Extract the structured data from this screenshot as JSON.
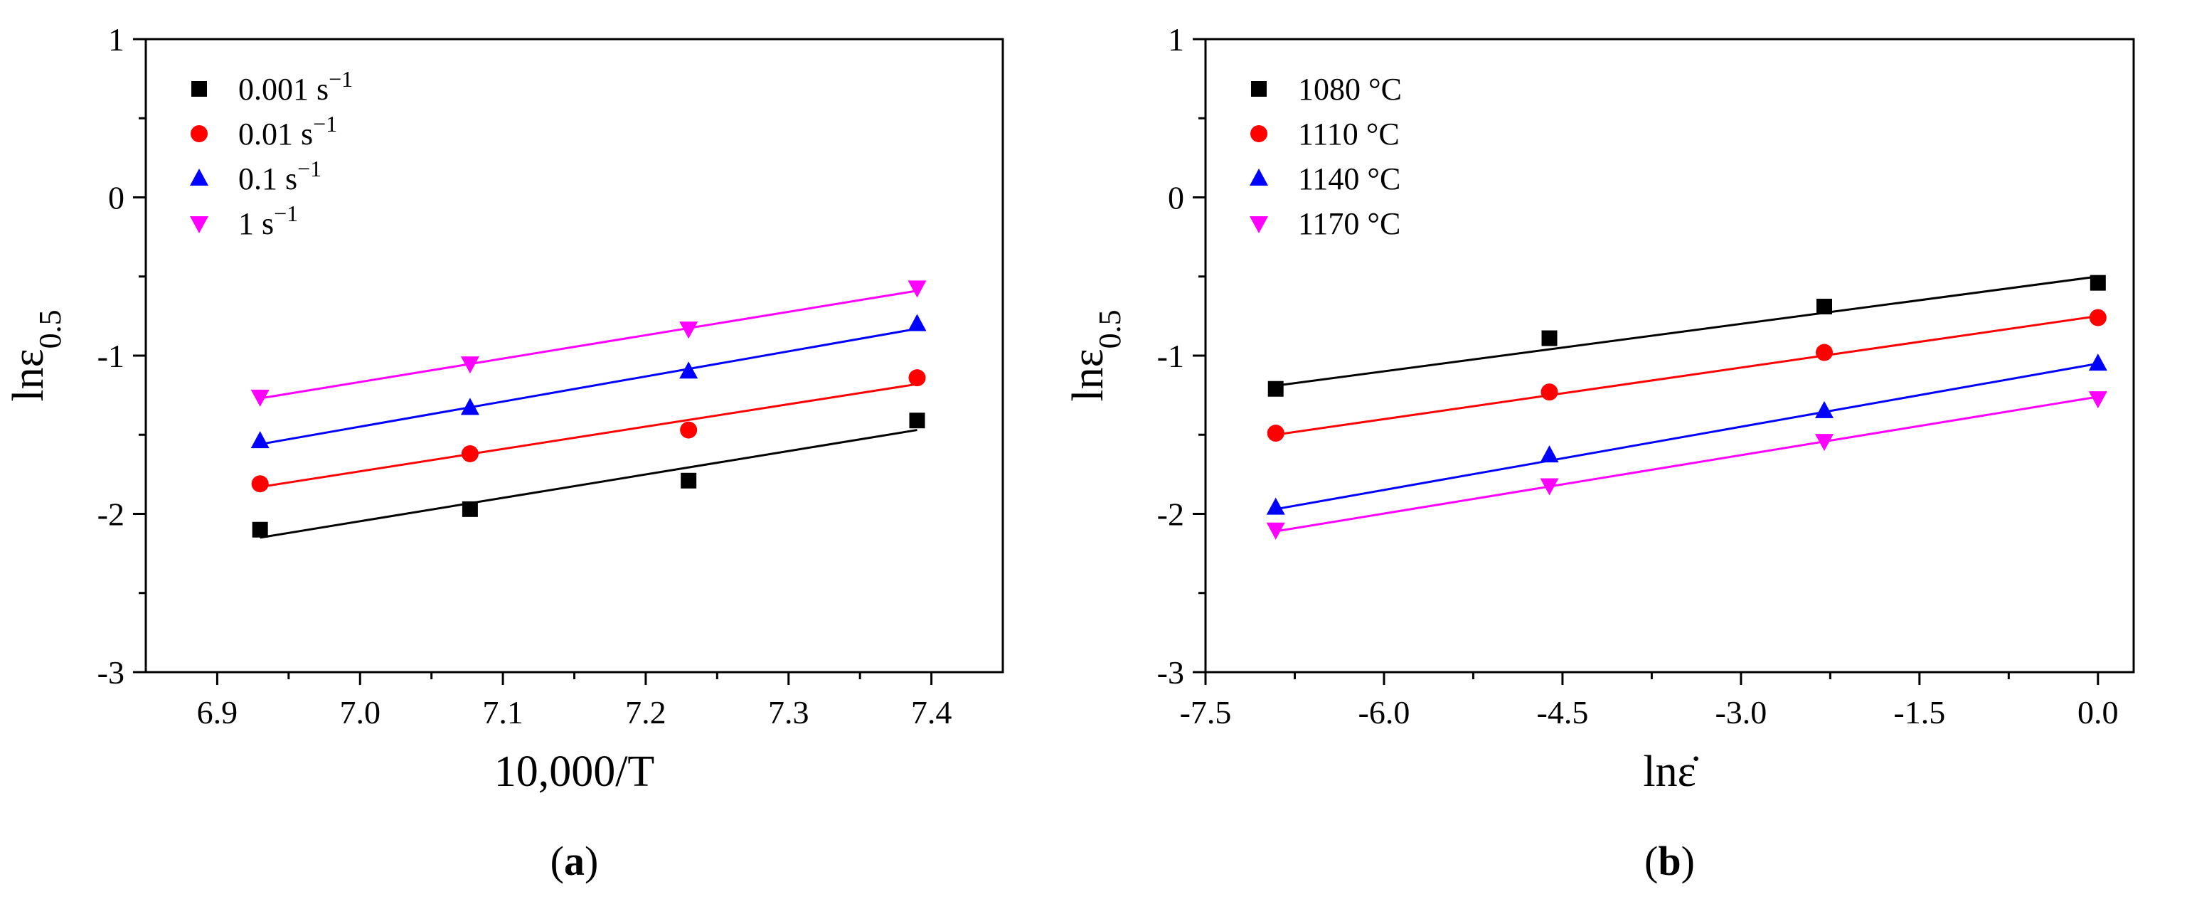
{
  "chart_data": [
    {
      "type": "scatter",
      "panel_label": "(a)",
      "panel_letter": "a",
      "xlabel": "10,000/T",
      "ylabel": "lnε0.5",
      "ylabel_main": "lnε",
      "ylabel_sub": "0.5",
      "xlim": [
        6.85,
        7.45
      ],
      "ylim": [
        -3,
        1
      ],
      "xticks": [
        6.9,
        7.0,
        7.1,
        7.2,
        7.3,
        7.4
      ],
      "xtick_labels": [
        "6.9",
        "7.0",
        "7.1",
        "7.2",
        "7.3",
        "7.4"
      ],
      "yticks": [
        -3,
        -2,
        -1,
        0,
        1
      ],
      "ytick_labels": [
        "-3",
        "-2",
        "-1",
        "0",
        "1"
      ],
      "grid": false,
      "legend_position": "top-left",
      "fit_lines": true,
      "series": [
        {
          "name": "0.001 s−1",
          "label_main": "0.001 s",
          "label_sup": "−1",
          "color": "#000000",
          "marker": "square",
          "x": [
            6.93,
            7.077,
            7.23,
            7.39
          ],
          "y": [
            -2.1,
            -1.97,
            -1.79,
            -1.41
          ],
          "fit": {
            "x": [
              6.93,
              7.39
            ],
            "y": [
              -2.15,
              -1.47
            ]
          }
        },
        {
          "name": "0.01 s−1",
          "label_main": "0.01 s",
          "label_sup": "−1",
          "color": "#ff0000",
          "marker": "circle",
          "x": [
            6.93,
            7.077,
            7.23,
            7.39
          ],
          "y": [
            -1.81,
            -1.62,
            -1.47,
            -1.14
          ],
          "fit": {
            "x": [
              6.93,
              7.39
            ],
            "y": [
              -1.83,
              -1.18
            ]
          }
        },
        {
          "name": "0.1 s−1",
          "label_main": "0.1 s",
          "label_sup": "−1",
          "color": "#0000ff",
          "marker": "triangle-up",
          "x": [
            6.93,
            7.077,
            7.23,
            7.39
          ],
          "y": [
            -1.54,
            -1.33,
            -1.1,
            -0.8
          ],
          "fit": {
            "x": [
              6.93,
              7.39
            ],
            "y": [
              -1.56,
              -0.83
            ]
          }
        },
        {
          "name": "1 s−1",
          "label_main": "1 s",
          "label_sup": "−1",
          "color": "#ff00ff",
          "marker": "triangle-down",
          "x": [
            6.93,
            7.077,
            7.23,
            7.39
          ],
          "y": [
            -1.26,
            -1.05,
            -0.83,
            -0.57
          ],
          "fit": {
            "x": [
              6.93,
              7.39
            ],
            "y": [
              -1.27,
              -0.59
            ]
          }
        }
      ]
    },
    {
      "type": "scatter",
      "panel_label": "(b)",
      "panel_letter": "b",
      "xlabel": "lnε̇",
      "ylabel": "lnε0.5",
      "ylabel_main": "lnε",
      "ylabel_sub": "0.5",
      "xlim": [
        -7.5,
        0.3
      ],
      "ylim": [
        -3,
        1
      ],
      "xticks": [
        -7.5,
        -6.0,
        -4.5,
        -3.0,
        -1.5,
        0.0
      ],
      "xtick_labels": [
        "-7.5",
        "-6.0",
        "-4.5",
        "-3.0",
        "-1.5",
        "0.0"
      ],
      "yticks": [
        -3,
        -2,
        -1,
        0,
        1
      ],
      "ytick_labels": [
        "-3",
        "-2",
        "-1",
        "0",
        "1"
      ],
      "grid": false,
      "legend_position": "top-left",
      "fit_lines": true,
      "series": [
        {
          "name": "1080 °C",
          "label_main": "1080 °C",
          "label_sup": "",
          "color": "#000000",
          "marker": "square",
          "x": [
            -6.91,
            -4.61,
            -2.3,
            0.0
          ],
          "y": [
            -1.21,
            -0.89,
            -0.69,
            -0.54
          ],
          "fit": {
            "x": [
              -6.91,
              0.0
            ],
            "y": [
              -1.19,
              -0.5
            ]
          }
        },
        {
          "name": "1110 °C",
          "label_main": "1110 °C",
          "label_sup": "",
          "color": "#ff0000",
          "marker": "circle",
          "x": [
            -6.91,
            -4.61,
            -2.3,
            0.0
          ],
          "y": [
            -1.49,
            -1.23,
            -0.98,
            -0.76
          ],
          "fit": {
            "x": [
              -6.91,
              0.0
            ],
            "y": [
              -1.5,
              -0.75
            ]
          }
        },
        {
          "name": "1140 °C",
          "label_main": "1140 °C",
          "label_sup": "",
          "color": "#0000ff",
          "marker": "triangle-up",
          "x": [
            -6.91,
            -4.61,
            -2.3,
            0.0
          ],
          "y": [
            -1.96,
            -1.63,
            -1.35,
            -1.05
          ],
          "fit": {
            "x": [
              -6.91,
              0.0
            ],
            "y": [
              -1.97,
              -1.05
            ]
          }
        },
        {
          "name": "1170 °C",
          "label_main": "1170 °C",
          "label_sup": "",
          "color": "#ff00ff",
          "marker": "triangle-down",
          "x": [
            -6.91,
            -4.61,
            -2.3,
            0.0
          ],
          "y": [
            -2.1,
            -1.82,
            -1.54,
            -1.27
          ],
          "fit": {
            "x": [
              -6.91,
              0.0
            ],
            "y": [
              -2.11,
              -1.26
            ]
          }
        }
      ]
    }
  ]
}
